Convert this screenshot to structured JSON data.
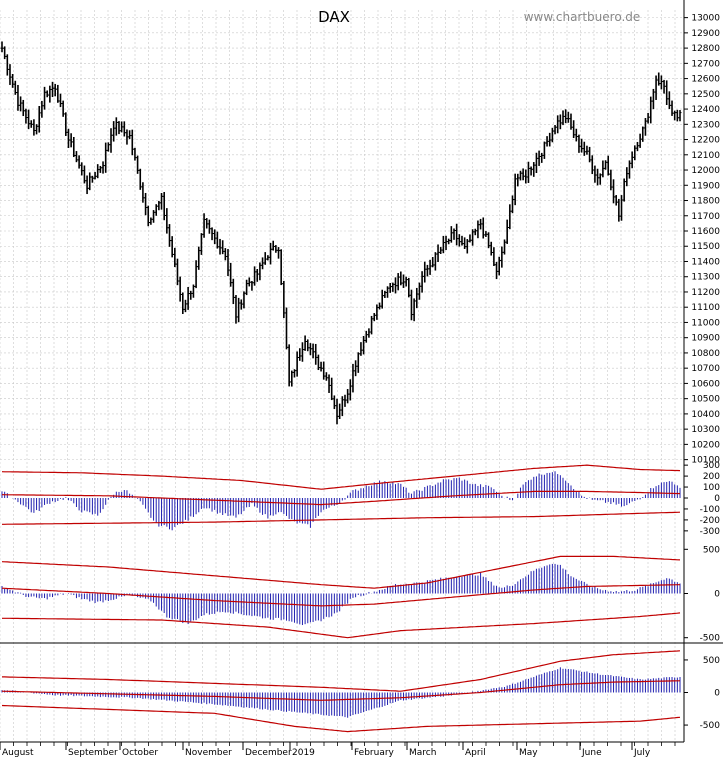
{
  "chart_data": {
    "type": "bar",
    "title": "DAX",
    "watermark": "www.chartbuero.de",
    "months": [
      "August",
      "September",
      "October",
      "November",
      "December",
      "2019",
      "February",
      "March",
      "April",
      "May",
      "June",
      "July"
    ],
    "price_panel": {
      "ylim": [
        10150,
        13050
      ],
      "yticks": [
        10100,
        10200,
        10300,
        10400,
        10500,
        10600,
        10700,
        10800,
        10900,
        11000,
        11100,
        11200,
        11300,
        11400,
        11500,
        11600,
        11700,
        11800,
        11900,
        12000,
        12100,
        12200,
        12300,
        12400,
        12500,
        12600,
        12700,
        12800,
        12900,
        13000
      ],
      "keypoints": [
        [
          0,
          12800
        ],
        [
          6,
          12450
        ],
        [
          12,
          12250
        ],
        [
          16,
          12500
        ],
        [
          20,
          12550
        ],
        [
          25,
          12200
        ],
        [
          32,
          11900
        ],
        [
          38,
          12050
        ],
        [
          42,
          12300
        ],
        [
          48,
          12220
        ],
        [
          55,
          11680
        ],
        [
          60,
          11800
        ],
        [
          68,
          11100
        ],
        [
          72,
          11250
        ],
        [
          76,
          11650
        ],
        [
          84,
          11450
        ],
        [
          88,
          11050
        ],
        [
          92,
          11250
        ],
        [
          96,
          11320
        ],
        [
          100,
          11450
        ],
        [
          104,
          11500
        ],
        [
          108,
          10600
        ],
        [
          114,
          10900
        ],
        [
          118,
          10750
        ],
        [
          122,
          10650
        ],
        [
          126,
          10400
        ],
        [
          130,
          10550
        ],
        [
          134,
          10800
        ],
        [
          140,
          11050
        ],
        [
          146,
          11250
        ],
        [
          152,
          11300
        ],
        [
          154,
          11080
        ],
        [
          158,
          11300
        ],
        [
          162,
          11400
        ],
        [
          166,
          11500
        ],
        [
          170,
          11580
        ],
        [
          174,
          11480
        ],
        [
          180,
          11650
        ],
        [
          184,
          11450
        ],
        [
          186,
          11320
        ],
        [
          190,
          11600
        ],
        [
          193,
          11950
        ],
        [
          196,
          11950
        ],
        [
          200,
          12050
        ],
        [
          204,
          12150
        ],
        [
          208,
          12300
        ],
        [
          212,
          12350
        ],
        [
          216,
          12200
        ],
        [
          220,
          12100
        ],
        [
          224,
          11950
        ],
        [
          227,
          12050
        ],
        [
          230,
          11850
        ],
        [
          232,
          11700
        ],
        [
          235,
          12000
        ],
        [
          238,
          12150
        ],
        [
          242,
          12300
        ],
        [
          246,
          12600
        ],
        [
          249,
          12550
        ],
        [
          252,
          12350
        ]
      ]
    },
    "indicator1": {
      "ylim": [
        -420,
        420
      ],
      "yticks": [
        300,
        200,
        100,
        0,
        -100,
        -200,
        -300
      ],
      "keypoints": [
        [
          0,
          60
        ],
        [
          6,
          -30
        ],
        [
          12,
          -140
        ],
        [
          18,
          -40
        ],
        [
          24,
          0
        ],
        [
          30,
          -120
        ],
        [
          36,
          -160
        ],
        [
          42,
          40
        ],
        [
          46,
          80
        ],
        [
          52,
          -40
        ],
        [
          58,
          -240
        ],
        [
          64,
          -280
        ],
        [
          70,
          -200
        ],
        [
          76,
          -80
        ],
        [
          82,
          -140
        ],
        [
          88,
          -180
        ],
        [
          94,
          -60
        ],
        [
          100,
          -180
        ],
        [
          104,
          -120
        ],
        [
          110,
          -220
        ],
        [
          116,
          -260
        ],
        [
          120,
          -120
        ],
        [
          126,
          -60
        ],
        [
          132,
          60
        ],
        [
          138,
          120
        ],
        [
          144,
          160
        ],
        [
          150,
          120
        ],
        [
          154,
          40
        ],
        [
          160,
          100
        ],
        [
          166,
          160
        ],
        [
          172,
          180
        ],
        [
          178,
          120
        ],
        [
          184,
          100
        ],
        [
          188,
          20
        ],
        [
          192,
          -20
        ],
        [
          196,
          120
        ],
        [
          200,
          200
        ],
        [
          206,
          240
        ],
        [
          210,
          220
        ],
        [
          214,
          120
        ],
        [
          218,
          20
        ],
        [
          222,
          -20
        ],
        [
          228,
          -40
        ],
        [
          234,
          -80
        ],
        [
          240,
          0
        ],
        [
          246,
          120
        ],
        [
          252,
          160
        ],
        [
          255,
          80
        ]
      ],
      "upper_band": [
        [
          0,
          240
        ],
        [
          30,
          230
        ],
        [
          60,
          200
        ],
        [
          90,
          160
        ],
        [
          120,
          80
        ],
        [
          140,
          130
        ],
        [
          170,
          200
        ],
        [
          200,
          270
        ],
        [
          220,
          300
        ],
        [
          240,
          260
        ],
        [
          255,
          250
        ]
      ],
      "middle_band": [
        [
          0,
          30
        ],
        [
          40,
          20
        ],
        [
          80,
          -20
        ],
        [
          120,
          -60
        ],
        [
          140,
          -30
        ],
        [
          170,
          20
        ],
        [
          200,
          60
        ],
        [
          220,
          60
        ],
        [
          240,
          50
        ],
        [
          255,
          40
        ]
      ],
      "lower_band": [
        [
          0,
          -240
        ],
        [
          40,
          -230
        ],
        [
          80,
          -220
        ],
        [
          120,
          -200
        ],
        [
          160,
          -180
        ],
        [
          200,
          -170
        ],
        [
          240,
          -140
        ],
        [
          255,
          -130
        ]
      ]
    },
    "indicator2": {
      "ylim": [
        -560,
        560
      ],
      "yticks": [
        500,
        0,
        -500
      ],
      "keypoints": [
        [
          0,
          80
        ],
        [
          10,
          -40
        ],
        [
          16,
          -60
        ],
        [
          24,
          0
        ],
        [
          30,
          -60
        ],
        [
          36,
          -100
        ],
        [
          42,
          -60
        ],
        [
          48,
          -20
        ],
        [
          56,
          -80
        ],
        [
          62,
          -260
        ],
        [
          70,
          -340
        ],
        [
          76,
          -240
        ],
        [
          84,
          -200
        ],
        [
          92,
          -240
        ],
        [
          100,
          -280
        ],
        [
          108,
          -300
        ],
        [
          114,
          -360
        ],
        [
          120,
          -300
        ],
        [
          126,
          -220
        ],
        [
          132,
          -40
        ],
        [
          140,
          20
        ],
        [
          148,
          100
        ],
        [
          156,
          120
        ],
        [
          164,
          160
        ],
        [
          172,
          200
        ],
        [
          180,
          220
        ],
        [
          184,
          120
        ],
        [
          188,
          60
        ],
        [
          192,
          100
        ],
        [
          200,
          260
        ],
        [
          206,
          340
        ],
        [
          210,
          320
        ],
        [
          214,
          200
        ],
        [
          220,
          100
        ],
        [
          226,
          40
        ],
        [
          232,
          20
        ],
        [
          238,
          40
        ],
        [
          244,
          100
        ],
        [
          250,
          180
        ],
        [
          255,
          120
        ]
      ],
      "upper_band": [
        [
          0,
          360
        ],
        [
          40,
          300
        ],
        [
          80,
          200
        ],
        [
          120,
          100
        ],
        [
          140,
          60
        ],
        [
          160,
          120
        ],
        [
          180,
          240
        ],
        [
          210,
          420
        ],
        [
          230,
          420
        ],
        [
          255,
          380
        ]
      ],
      "middle_band": [
        [
          0,
          60
        ],
        [
          40,
          0
        ],
        [
          80,
          -80
        ],
        [
          120,
          -140
        ],
        [
          140,
          -120
        ],
        [
          170,
          -40
        ],
        [
          200,
          40
        ],
        [
          220,
          80
        ],
        [
          255,
          100
        ]
      ],
      "lower_band": [
        [
          0,
          -280
        ],
        [
          60,
          -300
        ],
        [
          100,
          -380
        ],
        [
          130,
          -500
        ],
        [
          150,
          -420
        ],
        [
          200,
          -340
        ],
        [
          240,
          -260
        ],
        [
          255,
          -220
        ]
      ]
    },
    "indicator3": {
      "ylim": [
        -760,
        760
      ],
      "yticks": [
        500,
        0,
        -500
      ],
      "keypoints": [
        [
          0,
          40
        ],
        [
          20,
          -40
        ],
        [
          50,
          -80
        ],
        [
          80,
          -180
        ],
        [
          110,
          -300
        ],
        [
          130,
          -380
        ],
        [
          150,
          -120
        ],
        [
          170,
          -40
        ],
        [
          190,
          100
        ],
        [
          210,
          380
        ],
        [
          225,
          280
        ],
        [
          240,
          200
        ],
        [
          255,
          240
        ]
      ],
      "upper_band": [
        [
          0,
          240
        ],
        [
          40,
          200
        ],
        [
          80,
          140
        ],
        [
          120,
          80
        ],
        [
          150,
          20
        ],
        [
          180,
          200
        ],
        [
          210,
          480
        ],
        [
          230,
          580
        ],
        [
          255,
          640
        ]
      ],
      "middle_band": [
        [
          0,
          20
        ],
        [
          40,
          -20
        ],
        [
          80,
          -60
        ],
        [
          120,
          -120
        ],
        [
          150,
          -80
        ],
        [
          180,
          0
        ],
        [
          210,
          120
        ],
        [
          230,
          160
        ],
        [
          255,
          180
        ]
      ],
      "lower_band": [
        [
          0,
          -200
        ],
        [
          40,
          -260
        ],
        [
          80,
          -320
        ],
        [
          110,
          -520
        ],
        [
          130,
          -600
        ],
        [
          160,
          -520
        ],
        [
          200,
          -480
        ],
        [
          240,
          -440
        ],
        [
          255,
          -380
        ]
      ]
    }
  }
}
